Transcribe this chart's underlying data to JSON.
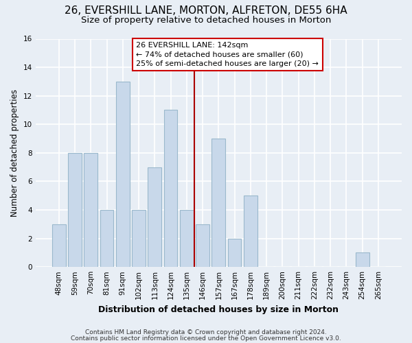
{
  "title": "26, EVERSHILL LANE, MORTON, ALFRETON, DE55 6HA",
  "subtitle": "Size of property relative to detached houses in Morton",
  "xlabel": "Distribution of detached houses by size in Morton",
  "ylabel": "Number of detached properties",
  "categories": [
    "48sqm",
    "59sqm",
    "70sqm",
    "81sqm",
    "91sqm",
    "102sqm",
    "113sqm",
    "124sqm",
    "135sqm",
    "146sqm",
    "157sqm",
    "167sqm",
    "178sqm",
    "189sqm",
    "200sqm",
    "211sqm",
    "222sqm",
    "232sqm",
    "243sqm",
    "254sqm",
    "265sqm"
  ],
  "values": [
    3,
    8,
    8,
    4,
    13,
    4,
    7,
    11,
    4,
    3,
    9,
    2,
    5,
    0,
    0,
    0,
    0,
    0,
    0,
    1,
    0
  ],
  "bar_color": "#c8d8ea",
  "bar_edge_color": "#9ab8cc",
  "highlight_line_color": "#aa0000",
  "ylim": [
    0,
    16
  ],
  "yticks": [
    0,
    2,
    4,
    6,
    8,
    10,
    12,
    14,
    16
  ],
  "annotation_title": "26 EVERSHILL LANE: 142sqm",
  "annotation_line1": "← 74% of detached houses are smaller (60)",
  "annotation_line2": "25% of semi-detached houses are larger (20) →",
  "annotation_box_color": "#ffffff",
  "annotation_border_color": "#cc0000",
  "footer1": "Contains HM Land Registry data © Crown copyright and database right 2024.",
  "footer2": "Contains public sector information licensed under the Open Government Licence v3.0.",
  "background_color": "#e8eef5",
  "plot_bg_color": "#e8eef5",
  "grid_color": "#ffffff",
  "title_fontsize": 11,
  "subtitle_fontsize": 9.5,
  "tick_fontsize": 7.5,
  "ylabel_fontsize": 8.5,
  "xlabel_fontsize": 9,
  "annotation_fontsize": 8,
  "footer_fontsize": 6.5
}
